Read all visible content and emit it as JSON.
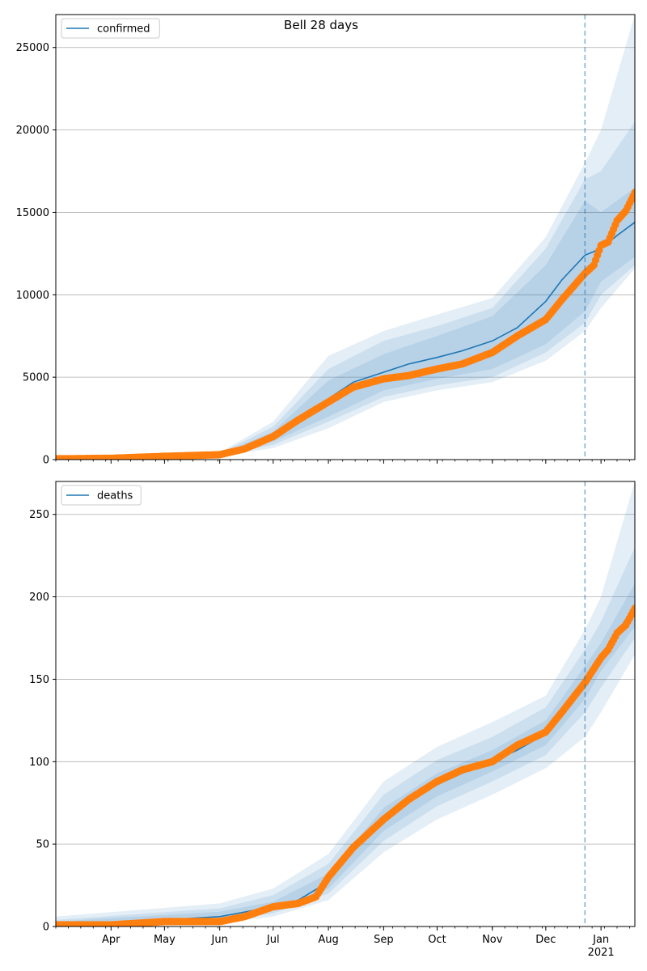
{
  "title": "Bell 28 days",
  "colors": {
    "model_line": "#1f77b4",
    "band": "#1f77b4",
    "observed": "#ff7f0e",
    "forecast_marker": "#1f77b4",
    "grid": "#b0b0b0"
  },
  "chart_data": [
    {
      "type": "line",
      "legend": "confirmed",
      "legend_position": "top-left",
      "grid": "horizontal",
      "x_start": "2020-03-01",
      "x_end": "2021-01-20",
      "ylim": [
        0,
        27000
      ],
      "y_ticks": [
        0,
        5000,
        10000,
        15000,
        20000,
        25000
      ],
      "forecast_start": "2020-12-23",
      "x_tick_labels": [
        "Apr",
        "May",
        "Jun",
        "Jul",
        "Aug",
        "Sep",
        "Oct",
        "Nov",
        "Dec",
        "Jan\n2021"
      ],
      "x_tick_labels_visible": false,
      "model_x": [
        "2020-03-01",
        "2020-04-01",
        "2020-05-01",
        "2020-06-01",
        "2020-06-15",
        "2020-07-01",
        "2020-07-15",
        "2020-08-01",
        "2020-08-15",
        "2020-09-01",
        "2020-09-15",
        "2020-10-01",
        "2020-10-15",
        "2020-11-01",
        "2020-11-15",
        "2020-12-01",
        "2020-12-10",
        "2020-12-23"
      ],
      "model_y": [
        50,
        80,
        150,
        300,
        700,
        1400,
        2400,
        3700,
        4700,
        5300,
        5800,
        6200,
        6600,
        7200,
        8000,
        9600,
        10900,
        12400
      ],
      "bands_x": [
        "2020-03-01",
        "2020-06-01",
        "2020-07-01",
        "2020-08-01",
        "2020-09-01",
        "2020-10-01",
        "2020-11-01",
        "2020-12-01",
        "2020-12-23",
        "2021-01-01",
        "2021-01-20"
      ],
      "bands": [
        {
          "lower": [
            40,
            270,
            1100,
            2600,
            4200,
            4900,
            5500,
            7000,
            9000,
            10800,
            12300
          ],
          "upper": [
            60,
            330,
            1700,
            4800,
            6400,
            7500,
            8700,
            11800,
            15700,
            15000,
            16500
          ]
        },
        {
          "lower": [
            35,
            240,
            900,
            2300,
            3800,
            4500,
            5000,
            6500,
            8300,
            10000,
            11800
          ],
          "upper": [
            70,
            370,
            2000,
            5500,
            7200,
            8100,
            9200,
            12800,
            17000,
            17500,
            20500
          ]
        },
        {
          "lower": [
            30,
            200,
            700,
            1900,
            3500,
            4200,
            4700,
            6000,
            7800,
            9200,
            11600
          ],
          "upper": [
            80,
            420,
            2300,
            6300,
            7800,
            8800,
            9800,
            13500,
            18000,
            20000,
            27000
          ]
        }
      ],
      "forecast_x": [
        "2020-12-23",
        "2021-01-01",
        "2021-01-10",
        "2021-01-20"
      ],
      "forecast_y": [
        12400,
        12800,
        13600,
        14400
      ],
      "observed_x": [
        "2020-03-01",
        "2020-04-01",
        "2020-05-01",
        "2020-06-01",
        "2020-06-15",
        "2020-07-01",
        "2020-07-15",
        "2020-08-01",
        "2020-08-15",
        "2020-09-01",
        "2020-09-15",
        "2020-10-01",
        "2020-10-15",
        "2020-11-01",
        "2020-11-15",
        "2020-12-01",
        "2020-12-10",
        "2020-12-23",
        "2020-12-28",
        "2021-01-01",
        "2021-01-05",
        "2021-01-10",
        "2021-01-15",
        "2021-01-20"
      ],
      "observed_y": [
        50,
        80,
        200,
        300,
        650,
        1400,
        2400,
        3500,
        4400,
        4900,
        5100,
        5500,
        5800,
        6500,
        7500,
        8500,
        9700,
        11300,
        11800,
        13000,
        13200,
        14500,
        15100,
        16200
      ]
    },
    {
      "type": "line",
      "legend": "deaths",
      "legend_position": "top-left",
      "grid": "horizontal",
      "x_start": "2020-03-01",
      "x_end": "2021-01-20",
      "ylim": [
        0,
        270
      ],
      "y_ticks": [
        0,
        50,
        100,
        150,
        200,
        250
      ],
      "forecast_start": "2020-12-23",
      "x_tick_labels": [
        "Apr",
        "May",
        "Jun",
        "Jul",
        "Aug",
        "Sep",
        "Oct",
        "Nov",
        "Dec",
        "Jan\n2021"
      ],
      "x_tick_labels_visible": true,
      "model_x": [
        "2020-03-01",
        "2020-04-01",
        "2020-05-01",
        "2020-06-01",
        "2020-07-01",
        "2020-07-15",
        "2020-08-01",
        "2020-08-15",
        "2020-09-01",
        "2020-09-15",
        "2020-10-01",
        "2020-10-15",
        "2020-11-01",
        "2020-11-15",
        "2020-12-01",
        "2020-12-10",
        "2020-12-23",
        "2021-01-01",
        "2021-01-10",
        "2021-01-20"
      ],
      "model_y": [
        1,
        2,
        4,
        6,
        12,
        16,
        27,
        48,
        65,
        76,
        86,
        93,
        100,
        107,
        117,
        129,
        148,
        164,
        178,
        195
      ],
      "bands_x": [
        "2020-03-01",
        "2020-06-01",
        "2020-07-01",
        "2020-08-01",
        "2020-09-01",
        "2020-10-01",
        "2020-11-01",
        "2020-12-01",
        "2020-12-23",
        "2021-01-01",
        "2021-01-20"
      ],
      "bands": [
        {
          "lower": [
            0,
            4,
            10,
            23,
            58,
            79,
            94,
            110,
            138,
            155,
            182
          ],
          "upper": [
            3,
            9,
            15,
            32,
            72,
            93,
            107,
            125,
            158,
            172,
            208
          ]
        },
        {
          "lower": [
            0,
            3,
            8,
            20,
            52,
            73,
            88,
            104,
            130,
            145,
            175
          ],
          "upper": [
            4,
            11,
            19,
            38,
            80,
            101,
            115,
            133,
            168,
            185,
            230
          ]
        },
        {
          "lower": [
            0,
            2,
            6,
            16,
            45,
            65,
            80,
            96,
            115,
            130,
            165
          ],
          "upper": [
            6,
            14,
            23,
            44,
            88,
            109,
            124,
            140,
            180,
            200,
            270
          ]
        }
      ],
      "observed_x": [
        "2020-03-01",
        "2020-04-01",
        "2020-05-01",
        "2020-06-01",
        "2020-06-15",
        "2020-07-01",
        "2020-07-15",
        "2020-07-25",
        "2020-08-01",
        "2020-08-15",
        "2020-09-01",
        "2020-09-15",
        "2020-10-01",
        "2020-10-15",
        "2020-11-01",
        "2020-11-15",
        "2020-12-01",
        "2020-12-10",
        "2020-12-23",
        "2021-01-01",
        "2021-01-05",
        "2021-01-10",
        "2021-01-15",
        "2021-01-20"
      ],
      "observed_y": [
        1,
        1,
        3,
        3,
        6,
        12,
        14,
        18,
        30,
        48,
        65,
        77,
        88,
        95,
        100,
        110,
        118,
        130,
        148,
        163,
        168,
        178,
        183,
        193
      ]
    }
  ]
}
